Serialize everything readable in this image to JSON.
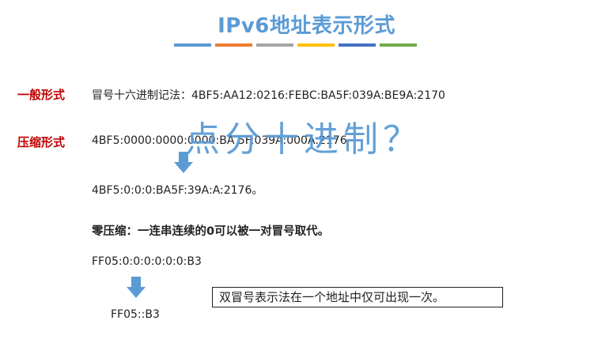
{
  "title": "IPv6地址表示形式",
  "stripes": [
    "#5b9bd5",
    "#ed7d31",
    "#a5a5a5",
    "#ffc000",
    "#4472c4",
    "#70ad47"
  ],
  "general": {
    "label": "一般形式",
    "text": "冒号十六进制记法：4BF5:AA12:0216:FEBC:BA5F:039A:BE9A:2170"
  },
  "compressed": {
    "label": "压缩形式",
    "original": "4BF5:0000:0000:0000:BA 5F:039A:000A:2176",
    "result": "4BF5:0:0:0:BA5F:39A:A:2176。"
  },
  "overlay_text": "点分十进制？",
  "zero_compression": {
    "heading": "零压缩：一连串连续的0可以被一对冒号取代。",
    "original": "FF05:0:0:0:0:0:0:B3",
    "result": "FF05::B3",
    "note": "双冒号表示法在一个地址中仅可出现一次。"
  },
  "colors": {
    "title": "#5b9bd5",
    "label": "#c00000",
    "arrow": "#5b9bd5"
  }
}
